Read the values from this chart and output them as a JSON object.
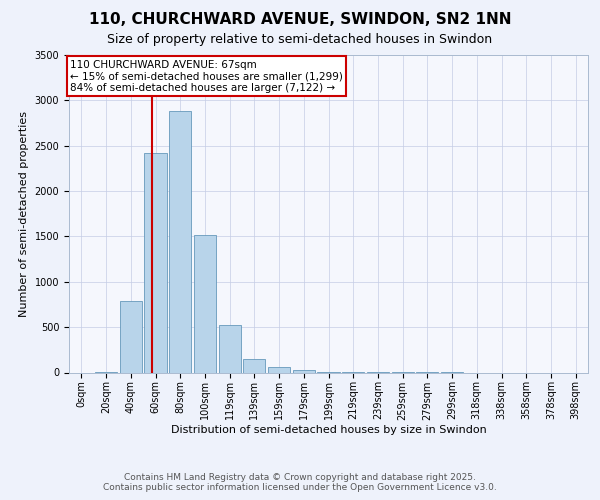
{
  "title_line1": "110, CHURCHWARD AVENUE, SWINDON, SN2 1NN",
  "title_line2": "Size of property relative to semi-detached houses in Swindon",
  "xlabel": "Distribution of semi-detached houses by size in Swindon",
  "ylabel": "Number of semi-detached properties",
  "categories": [
    "0sqm",
    "20sqm",
    "40sqm",
    "60sqm",
    "80sqm",
    "100sqm",
    "119sqm",
    "139sqm",
    "159sqm",
    "179sqm",
    "199sqm",
    "219sqm",
    "239sqm",
    "259sqm",
    "279sqm",
    "299sqm",
    "318sqm",
    "338sqm",
    "358sqm",
    "378sqm",
    "398sqm"
  ],
  "values": [
    0,
    5,
    790,
    2420,
    2880,
    1520,
    520,
    150,
    60,
    30,
    10,
    5,
    3,
    2,
    1,
    1,
    0,
    0,
    0,
    0,
    0
  ],
  "bar_color": "#b8d4ea",
  "bar_edge_color": "#6699bb",
  "vline_color": "#cc0000",
  "annotation_text": "110 CHURCHWARD AVENUE: 67sqm\n← 15% of semi-detached houses are smaller (1,299)\n84% of semi-detached houses are larger (7,122) →",
  "annotation_box_color": "#ffffff",
  "annotation_box_edge_color": "#cc0000",
  "ylim": [
    0,
    3500
  ],
  "yticks": [
    0,
    500,
    1000,
    1500,
    2000,
    2500,
    3000,
    3500
  ],
  "bg_color": "#eef2fb",
  "plot_bg_color": "#f5f7fd",
  "footer_text": "Contains HM Land Registry data © Crown copyright and database right 2025.\nContains public sector information licensed under the Open Government Licence v3.0.",
  "title_fontsize": 11,
  "subtitle_fontsize": 9,
  "label_fontsize": 8,
  "tick_fontsize": 7,
  "footer_fontsize": 6.5,
  "annotation_fontsize": 7.5
}
